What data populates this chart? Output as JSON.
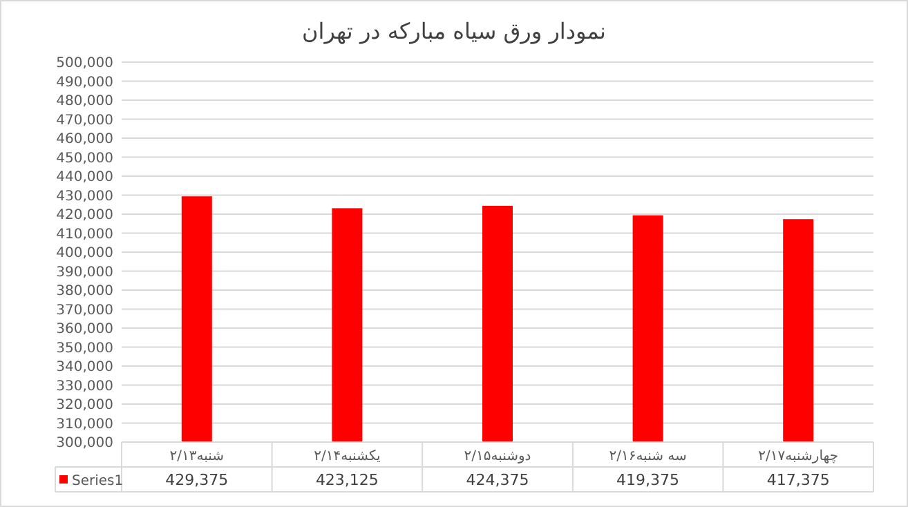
{
  "chart_data": {
    "type": "bar",
    "title": "نمودار ورق سیاه مبارکه در تهران",
    "categories": [
      "شنبه۲/۱۳",
      "یکشنبه۲/۱۴",
      "دوشنبه۲/۱۵",
      "سه شنبه۲/۱۶",
      "چهارشنبه۲/۱۷"
    ],
    "series": [
      {
        "name": "Series1",
        "color": "#ff0000",
        "values": [
          429375,
          423125,
          424375,
          419375,
          417375
        ],
        "value_labels": [
          "429,375",
          "423,125",
          "424,375",
          "419,375",
          "417,375"
        ]
      }
    ],
    "ylim": [
      300000,
      500000
    ],
    "yticks": [
      {
        "value": 300000,
        "label": "300,000"
      },
      {
        "value": 310000,
        "label": "310,000"
      },
      {
        "value": 320000,
        "label": "320,000"
      },
      {
        "value": 330000,
        "label": "330,000"
      },
      {
        "value": 340000,
        "label": "340,000"
      },
      {
        "value": 350000,
        "label": "350,000"
      },
      {
        "value": 360000,
        "label": "360,000"
      },
      {
        "value": 370000,
        "label": "370,000"
      },
      {
        "value": 380000,
        "label": "380,000"
      },
      {
        "value": 390000,
        "label": "390,000"
      },
      {
        "value": 400000,
        "label": "400,000"
      },
      {
        "value": 410000,
        "label": "410,000"
      },
      {
        "value": 420000,
        "label": "420,000"
      },
      {
        "value": 430000,
        "label": "430,000"
      },
      {
        "value": 440000,
        "label": "440,000"
      },
      {
        "value": 450000,
        "label": "450,000"
      },
      {
        "value": 460000,
        "label": "460,000"
      },
      {
        "value": 470000,
        "label": "470,000"
      },
      {
        "value": 480000,
        "label": "480,000"
      },
      {
        "value": 490000,
        "label": "490,000"
      },
      {
        "value": 500000,
        "label": "500,000"
      }
    ],
    "grid": "y",
    "legend": "bottom"
  }
}
